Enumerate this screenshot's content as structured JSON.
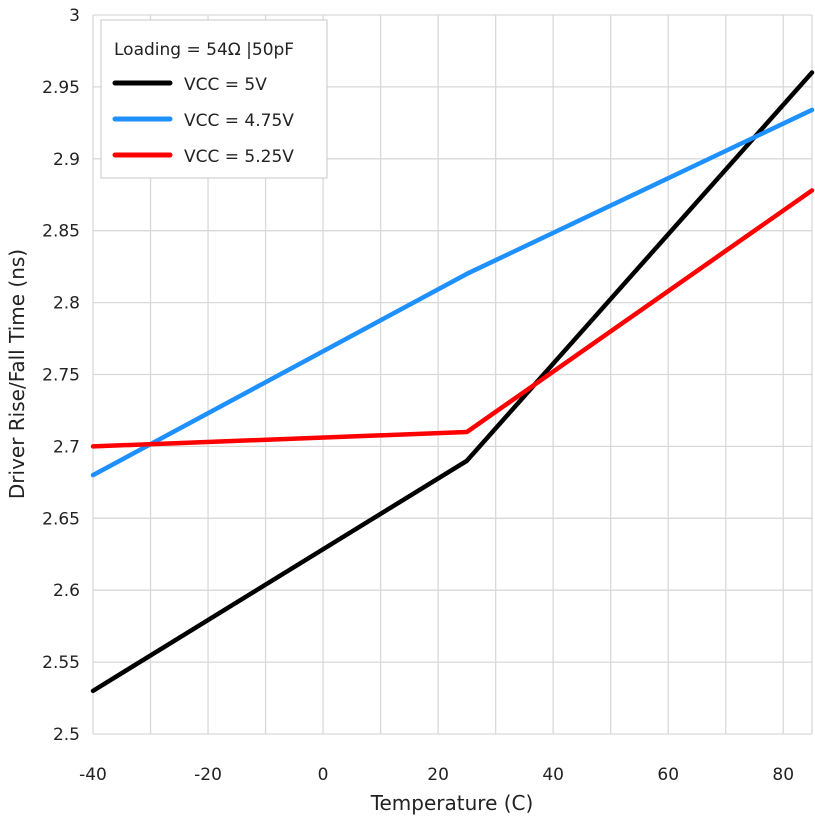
{
  "chart_data": {
    "type": "line",
    "title": "",
    "xlabel": "Temperature (C)",
    "ylabel": "Driver Rise/Fall Time (ns)",
    "xlim": [
      -40,
      85
    ],
    "ylim": [
      2.5,
      3.0
    ],
    "xticks": [
      -40,
      -20,
      0,
      20,
      40,
      60,
      80
    ],
    "xtick_labels": [
      "-40",
      "-20",
      "0",
      "20",
      "40",
      "60",
      "80"
    ],
    "yticks": [
      2.5,
      2.55,
      2.6,
      2.65,
      2.7,
      2.75,
      2.8,
      2.85,
      2.9,
      2.95,
      3.0
    ],
    "ytick_labels": [
      "2.5",
      "2.55",
      "2.6",
      "2.65",
      "2.7",
      "2.75",
      "2.8",
      "2.85",
      "2.9",
      "2.95",
      "3"
    ],
    "grid": true,
    "grid_x_step": 10,
    "legend_title": "Loading = 54Ω |50pF",
    "legend_position": "top-left",
    "x": [
      -40,
      25,
      85
    ],
    "series": [
      {
        "name": "VCC = 5V",
        "color": "#000000",
        "values": [
          2.53,
          2.69,
          2.96
        ]
      },
      {
        "name": "VCC = 4.75V",
        "color": "#1e90ff",
        "values": [
          2.68,
          2.82,
          2.934
        ]
      },
      {
        "name": "VCC = 5.25V",
        "color": "#ff0000",
        "values": [
          2.7,
          2.71,
          2.878
        ]
      }
    ]
  }
}
